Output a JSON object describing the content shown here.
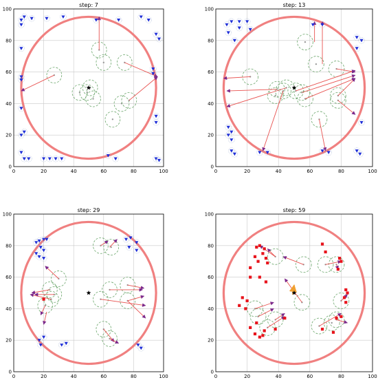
{
  "colors": {
    "circle": "#f08080",
    "arrow": "#e8514f",
    "arrowhead": "#7b2a8c",
    "ring": "#6aa56a",
    "dot_ring": "#8aa0c8",
    "blue_marker": "#1f2fd8",
    "red_marker": "#e8141c",
    "star": "#000000",
    "orange_arrow": "#f0a030",
    "grid": "#c8c8c8"
  },
  "chart_data": [
    {
      "type": "scatter",
      "title": "step: 7",
      "xlim": [
        0,
        100
      ],
      "ylim": [
        0,
        100
      ],
      "x_ticks": [
        0,
        20,
        40,
        60,
        80,
        100
      ],
      "y_ticks": [
        0,
        20,
        40,
        60,
        80,
        100
      ],
      "grid": true,
      "boundary_circle": {
        "cx": 50,
        "cy": 50,
        "r": 45
      },
      "goal": {
        "x": 50,
        "y": 50
      },
      "blue_markers": [
        [
          5,
          93
        ],
        [
          7,
          95
        ],
        [
          5,
          90
        ],
        [
          12,
          94
        ],
        [
          22,
          94
        ],
        [
          33,
          95
        ],
        [
          5,
          75
        ],
        [
          5,
          57
        ],
        [
          5,
          55
        ],
        [
          5,
          37
        ],
        [
          5,
          20
        ],
        [
          7,
          22
        ],
        [
          5,
          9
        ],
        [
          7,
          5
        ],
        [
          10,
          5
        ],
        [
          20,
          5
        ],
        [
          24,
          5
        ],
        [
          28,
          5
        ],
        [
          32,
          5
        ],
        [
          55,
          93
        ],
        [
          70,
          93
        ],
        [
          85,
          95
        ],
        [
          90,
          93
        ],
        [
          95,
          84
        ],
        [
          97,
          81
        ],
        [
          93,
          62
        ],
        [
          93,
          59
        ],
        [
          95,
          32
        ],
        [
          95,
          28
        ],
        [
          95,
          5
        ],
        [
          97,
          4
        ],
        [
          63,
          7
        ],
        [
          68,
          5
        ]
      ],
      "rings": [
        [
          27,
          58
        ],
        [
          51,
          50
        ],
        [
          49,
          47
        ],
        [
          44,
          47
        ],
        [
          53,
          43
        ],
        [
          57,
          74
        ],
        [
          60,
          66
        ],
        [
          74,
          66
        ],
        [
          72,
          40
        ],
        [
          77,
          42
        ],
        [
          66,
          30
        ]
      ],
      "arrows": [
        [
          57,
          74,
          57,
          95
        ],
        [
          27,
          58,
          5,
          48
        ],
        [
          74,
          66,
          96,
          57
        ],
        [
          77,
          42,
          96,
          57
        ]
      ]
    },
    {
      "type": "scatter",
      "title": "step: 13",
      "xlim": [
        0,
        100
      ],
      "ylim": [
        0,
        100
      ],
      "x_ticks": [
        0,
        20,
        40,
        60,
        80,
        100
      ],
      "y_ticks": [
        0,
        20,
        40,
        60,
        80,
        100
      ],
      "grid": true,
      "boundary_circle": {
        "cx": 50,
        "cy": 50,
        "r": 45
      },
      "goal": {
        "x": 50,
        "y": 50
      },
      "blue_markers": [
        [
          7,
          90
        ],
        [
          10,
          92
        ],
        [
          8,
          85
        ],
        [
          12,
          80
        ],
        [
          15,
          88
        ],
        [
          15,
          92
        ],
        [
          20,
          92
        ],
        [
          22,
          87
        ],
        [
          8,
          25
        ],
        [
          10,
          22
        ],
        [
          8,
          20
        ],
        [
          10,
          17
        ],
        [
          10,
          10
        ],
        [
          12,
          8
        ],
        [
          28,
          9
        ],
        [
          33,
          9
        ],
        [
          68,
          10
        ],
        [
          72,
          9
        ],
        [
          90,
          82
        ],
        [
          93,
          80
        ],
        [
          90,
          75
        ],
        [
          93,
          28
        ],
        [
          90,
          10
        ],
        [
          92,
          8
        ],
        [
          62,
          90
        ],
        [
          68,
          90
        ]
      ],
      "rings": [
        [
          22,
          57
        ],
        [
          39,
          49
        ],
        [
          43,
          48
        ],
        [
          45,
          50
        ],
        [
          51,
          48
        ],
        [
          55,
          47
        ],
        [
          57,
          43
        ],
        [
          38,
          45
        ],
        [
          57,
          79
        ],
        [
          64,
          65
        ],
        [
          77,
          62
        ],
        [
          66,
          30
        ],
        [
          78,
          45
        ],
        [
          78,
          42
        ]
      ],
      "arrows": [
        [
          63,
          79,
          63,
          92
        ],
        [
          68,
          65,
          68,
          92
        ],
        [
          22,
          57,
          5,
          56
        ],
        [
          39,
          49,
          7,
          48
        ],
        [
          45,
          50,
          7,
          38
        ],
        [
          51,
          48,
          89,
          61
        ],
        [
          55,
          47,
          89,
          58
        ],
        [
          57,
          43,
          89,
          56
        ],
        [
          77,
          62,
          89,
          60
        ],
        [
          78,
          45,
          89,
          56
        ],
        [
          78,
          42,
          89,
          33
        ],
        [
          66,
          30,
          70,
          10
        ],
        [
          43,
          48,
          30,
          10
        ]
      ]
    },
    {
      "type": "scatter",
      "title": "step: 29",
      "xlim": [
        0,
        100
      ],
      "ylim": [
        0,
        100
      ],
      "x_ticks": [
        0,
        20,
        40,
        60,
        80,
        100
      ],
      "y_ticks": [
        0,
        20,
        40,
        60,
        80,
        100
      ],
      "grid": true,
      "boundary_circle": {
        "cx": 50,
        "cy": 50,
        "r": 45
      },
      "goal": {
        "x": 50,
        "y": 50
      },
      "blue_markers": [
        [
          15,
          82
        ],
        [
          17,
          83
        ],
        [
          20,
          84
        ],
        [
          22,
          84
        ],
        [
          18,
          79
        ],
        [
          20,
          77
        ],
        [
          15,
          75
        ],
        [
          17,
          73
        ],
        [
          20,
          72
        ],
        [
          17,
          20
        ],
        [
          20,
          22
        ],
        [
          18,
          17
        ],
        [
          32,
          17
        ],
        [
          35,
          18
        ],
        [
          75,
          84
        ],
        [
          78,
          85
        ],
        [
          82,
          82
        ],
        [
          77,
          79
        ],
        [
          82,
          77
        ],
        [
          83,
          17
        ],
        [
          85,
          15
        ]
      ],
      "red_markers": [
        [
          20,
          46
        ]
      ],
      "rings": [
        [
          24,
          52
        ],
        [
          30,
          59
        ],
        [
          25,
          46
        ],
        [
          21,
          42
        ],
        [
          27,
          49
        ],
        [
          58,
          46
        ],
        [
          64,
          52
        ],
        [
          76,
          55
        ],
        [
          76,
          45
        ],
        [
          58,
          80
        ],
        [
          65,
          79
        ],
        [
          60,
          27
        ],
        [
          64,
          21
        ]
      ],
      "arrows": [
        [
          24,
          52,
          12,
          50
        ],
        [
          30,
          59,
          21,
          67
        ],
        [
          25,
          46,
          11,
          49
        ],
        [
          21,
          42,
          18,
          36
        ],
        [
          27,
          49,
          14,
          49
        ],
        [
          58,
          80,
          63,
          83
        ],
        [
          64,
          79,
          69,
          84
        ],
        [
          64,
          52,
          86,
          52
        ],
        [
          76,
          55,
          87,
          53
        ],
        [
          76,
          45,
          87,
          48
        ],
        [
          76,
          45,
          88,
          34
        ],
        [
          58,
          46,
          88,
          42
        ],
        [
          60,
          27,
          67,
          19
        ],
        [
          64,
          21,
          70,
          18
        ],
        [
          22,
          38,
          20,
          30
        ]
      ]
    },
    {
      "type": "scatter",
      "title": "step: 59",
      "xlim": [
        0,
        100
      ],
      "ylim": [
        0,
        100
      ],
      "x_ticks": [
        0,
        20,
        40,
        60,
        80,
        100
      ],
      "y_ticks": [
        0,
        20,
        40,
        60,
        80,
        100
      ],
      "grid": true,
      "boundary_circle": {
        "cx": 50,
        "cy": 50,
        "r": 45
      },
      "goal": {
        "x": 50,
        "y": 50
      },
      "red_markers": [
        [
          26,
          79
        ],
        [
          28,
          80
        ],
        [
          31,
          78
        ],
        [
          25,
          73
        ],
        [
          27,
          70
        ],
        [
          30,
          75
        ],
        [
          32,
          72
        ],
        [
          22,
          66
        ],
        [
          33,
          69
        ],
        [
          22,
          60
        ],
        [
          28,
          60
        ],
        [
          32,
          57
        ],
        [
          68,
          81
        ],
        [
          70,
          76
        ],
        [
          17,
          47
        ],
        [
          20,
          45
        ],
        [
          15,
          42
        ],
        [
          19,
          40
        ],
        [
          22,
          28
        ],
        [
          26,
          31
        ],
        [
          25,
          24
        ],
        [
          28,
          22
        ],
        [
          30,
          23
        ],
        [
          31,
          26
        ],
        [
          38,
          27
        ],
        [
          44,
          34
        ],
        [
          79,
          72
        ],
        [
          80,
          70
        ],
        [
          78,
          65
        ],
        [
          83,
          52
        ],
        [
          84,
          50
        ],
        [
          82,
          47
        ],
        [
          83,
          44
        ],
        [
          80,
          35
        ],
        [
          77,
          34
        ],
        [
          68,
          27
        ],
        [
          75,
          25
        ]
      ],
      "rings": [
        [
          38,
          73
        ],
        [
          56,
          68
        ],
        [
          70,
          68
        ],
        [
          77,
          68
        ],
        [
          25,
          40
        ],
        [
          27,
          35
        ],
        [
          33,
          28
        ],
        [
          38,
          33
        ],
        [
          55,
          44
        ],
        [
          66,
          29
        ],
        [
          77,
          33
        ],
        [
          74,
          31
        ],
        [
          80,
          45
        ]
      ],
      "arrows": [
        [
          38,
          73,
          28,
          80
        ],
        [
          38,
          73,
          33,
          78
        ],
        [
          56,
          68,
          43,
          73
        ],
        [
          70,
          68,
          80,
          70
        ],
        [
          77,
          68,
          78,
          65
        ],
        [
          25,
          40,
          37,
          44
        ],
        [
          27,
          35,
          37,
          40
        ],
        [
          33,
          28,
          44,
          35
        ],
        [
          38,
          33,
          44,
          37
        ],
        [
          55,
          44,
          44,
          59
        ],
        [
          66,
          29,
          80,
          37
        ],
        [
          77,
          33,
          84,
          31
        ],
        [
          80,
          45,
          84,
          49
        ]
      ],
      "orange_arrow": [
        49,
        49,
        50,
        55
      ]
    }
  ]
}
